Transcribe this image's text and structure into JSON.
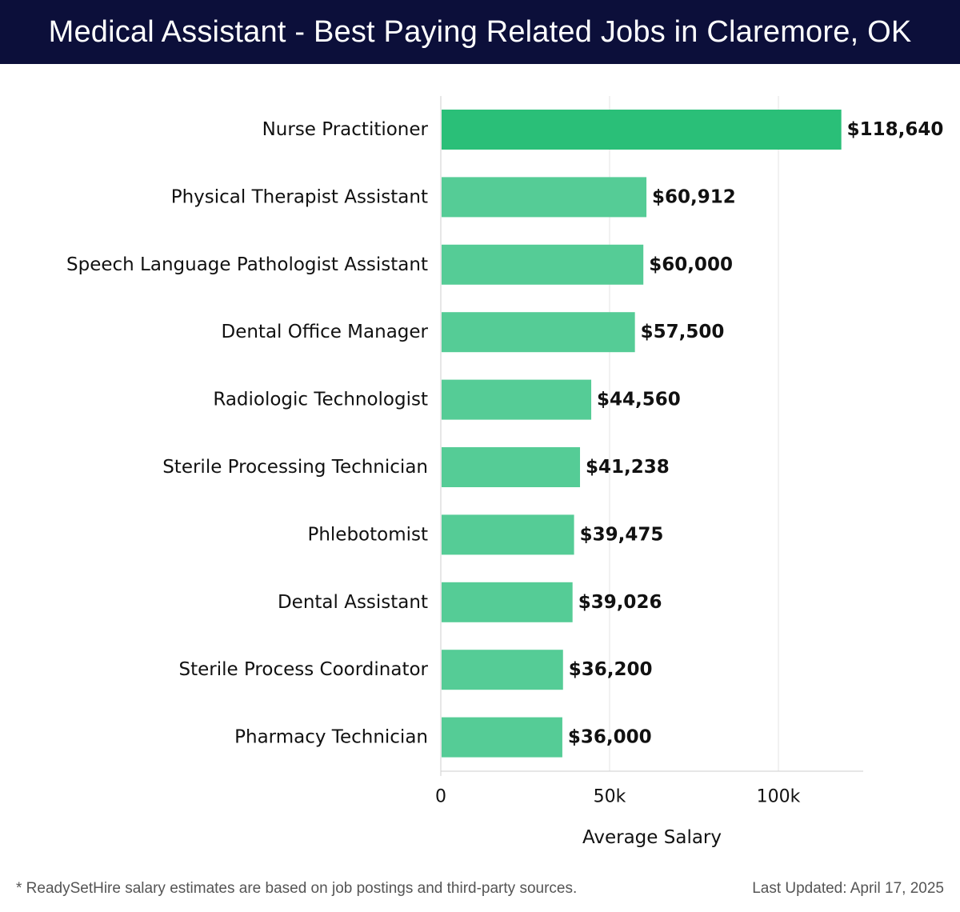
{
  "header": {
    "title": "Medical Assistant - Best Paying Related Jobs in Claremore, OK"
  },
  "chart_data": {
    "type": "bar",
    "orientation": "horizontal",
    "categories": [
      "Nurse Practitioner",
      "Physical Therapist Assistant",
      "Speech Language Pathologist Assistant",
      "Dental Office Manager",
      "Radiologic Technologist",
      "Sterile Processing Technician",
      "Phlebotomist",
      "Dental Assistant",
      "Sterile Process Coordinator",
      "Pharmacy Technician"
    ],
    "values": [
      118640,
      60912,
      60000,
      57500,
      44560,
      41238,
      39475,
      39026,
      36200,
      36000
    ],
    "value_labels": [
      "$118,640",
      "$60,912",
      "$60,000",
      "$57,500",
      "$44,560",
      "$41,238",
      "$39,475",
      "$39,026",
      "$36,200",
      "$36,000"
    ],
    "xlabel": "Average Salary",
    "ylabel": "",
    "xlim": [
      0,
      125000
    ],
    "xticks": [
      0,
      50000,
      100000
    ],
    "xtick_labels": [
      "0",
      "50k",
      "100k"
    ],
    "grid": true,
    "colors": {
      "top_bar": "#2abf78",
      "bar": "#55cc96"
    }
  },
  "footer": {
    "note": "* ReadySetHire salary estimates are based on job postings and third-party sources.",
    "updated": "Last Updated: April 17, 2025"
  }
}
